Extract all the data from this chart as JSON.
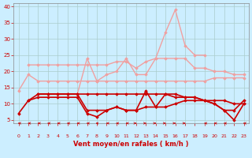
{
  "title": "",
  "xlabel": "Vent moyen/en rafales ( km/h )",
  "bg_color": "#cceeff",
  "grid_color": "#aacccc",
  "xlim": [
    -0.5,
    23.5
  ],
  "ylim": [
    4,
    41
  ],
  "yticks": [
    5,
    10,
    15,
    20,
    25,
    30,
    35,
    40
  ],
  "xticks": [
    0,
    1,
    2,
    3,
    4,
    5,
    6,
    7,
    8,
    9,
    10,
    11,
    12,
    13,
    14,
    15,
    16,
    17,
    18,
    19,
    20,
    21,
    22,
    23
  ],
  "x": [
    0,
    1,
    2,
    3,
    4,
    5,
    6,
    7,
    8,
    9,
    10,
    11,
    12,
    13,
    14,
    15,
    16,
    17,
    18,
    19,
    20,
    21,
    22,
    23
  ],
  "line1": [
    14,
    19,
    17,
    17,
    17,
    17,
    17,
    17,
    17,
    17,
    17,
    17,
    17,
    17,
    17,
    17,
    17,
    17,
    17,
    17,
    18,
    18,
    18,
    18
  ],
  "line2": [
    null,
    22,
    22,
    22,
    22,
    22,
    22,
    22,
    22,
    22,
    23,
    23,
    21,
    23,
    24,
    24,
    24,
    24,
    21,
    21,
    20,
    20,
    19,
    19
  ],
  "line3": [
    null,
    null,
    13,
    13,
    13,
    13,
    13,
    24,
    17,
    19,
    20,
    24,
    19,
    19,
    24,
    32,
    39,
    28,
    25,
    25,
    null,
    null,
    null,
    null
  ],
  "line4": [
    7,
    11,
    13,
    13,
    13,
    13,
    13,
    8,
    8,
    8,
    9,
    8,
    8,
    14,
    9,
    13,
    13,
    12,
    12,
    11,
    10,
    8,
    5,
    10
  ],
  "line5": [
    null,
    11,
    12,
    12,
    12,
    12,
    12,
    7,
    6,
    8,
    9,
    8,
    8,
    9,
    9,
    9,
    10,
    11,
    11,
    11,
    10,
    8,
    8,
    11
  ],
  "line6": [
    null,
    null,
    13,
    13,
    13,
    13,
    13,
    13,
    13,
    13,
    13,
    13,
    13,
    13,
    13,
    13,
    12,
    12,
    12,
    11,
    11,
    11,
    10,
    10
  ],
  "line1_color": "#f0a0a0",
  "line2_color": "#f0a0a0",
  "line3_color": "#f0a0a0",
  "line4_color": "#cc0000",
  "line5_color": "#cc0000",
  "line6_color": "#cc0000",
  "arrow_angles": [
    225,
    225,
    225,
    225,
    225,
    225,
    225,
    225,
    270,
    315,
    315,
    315,
    45,
    45,
    45,
    45,
    45,
    45,
    180,
    225,
    225,
    225,
    180,
    225
  ]
}
